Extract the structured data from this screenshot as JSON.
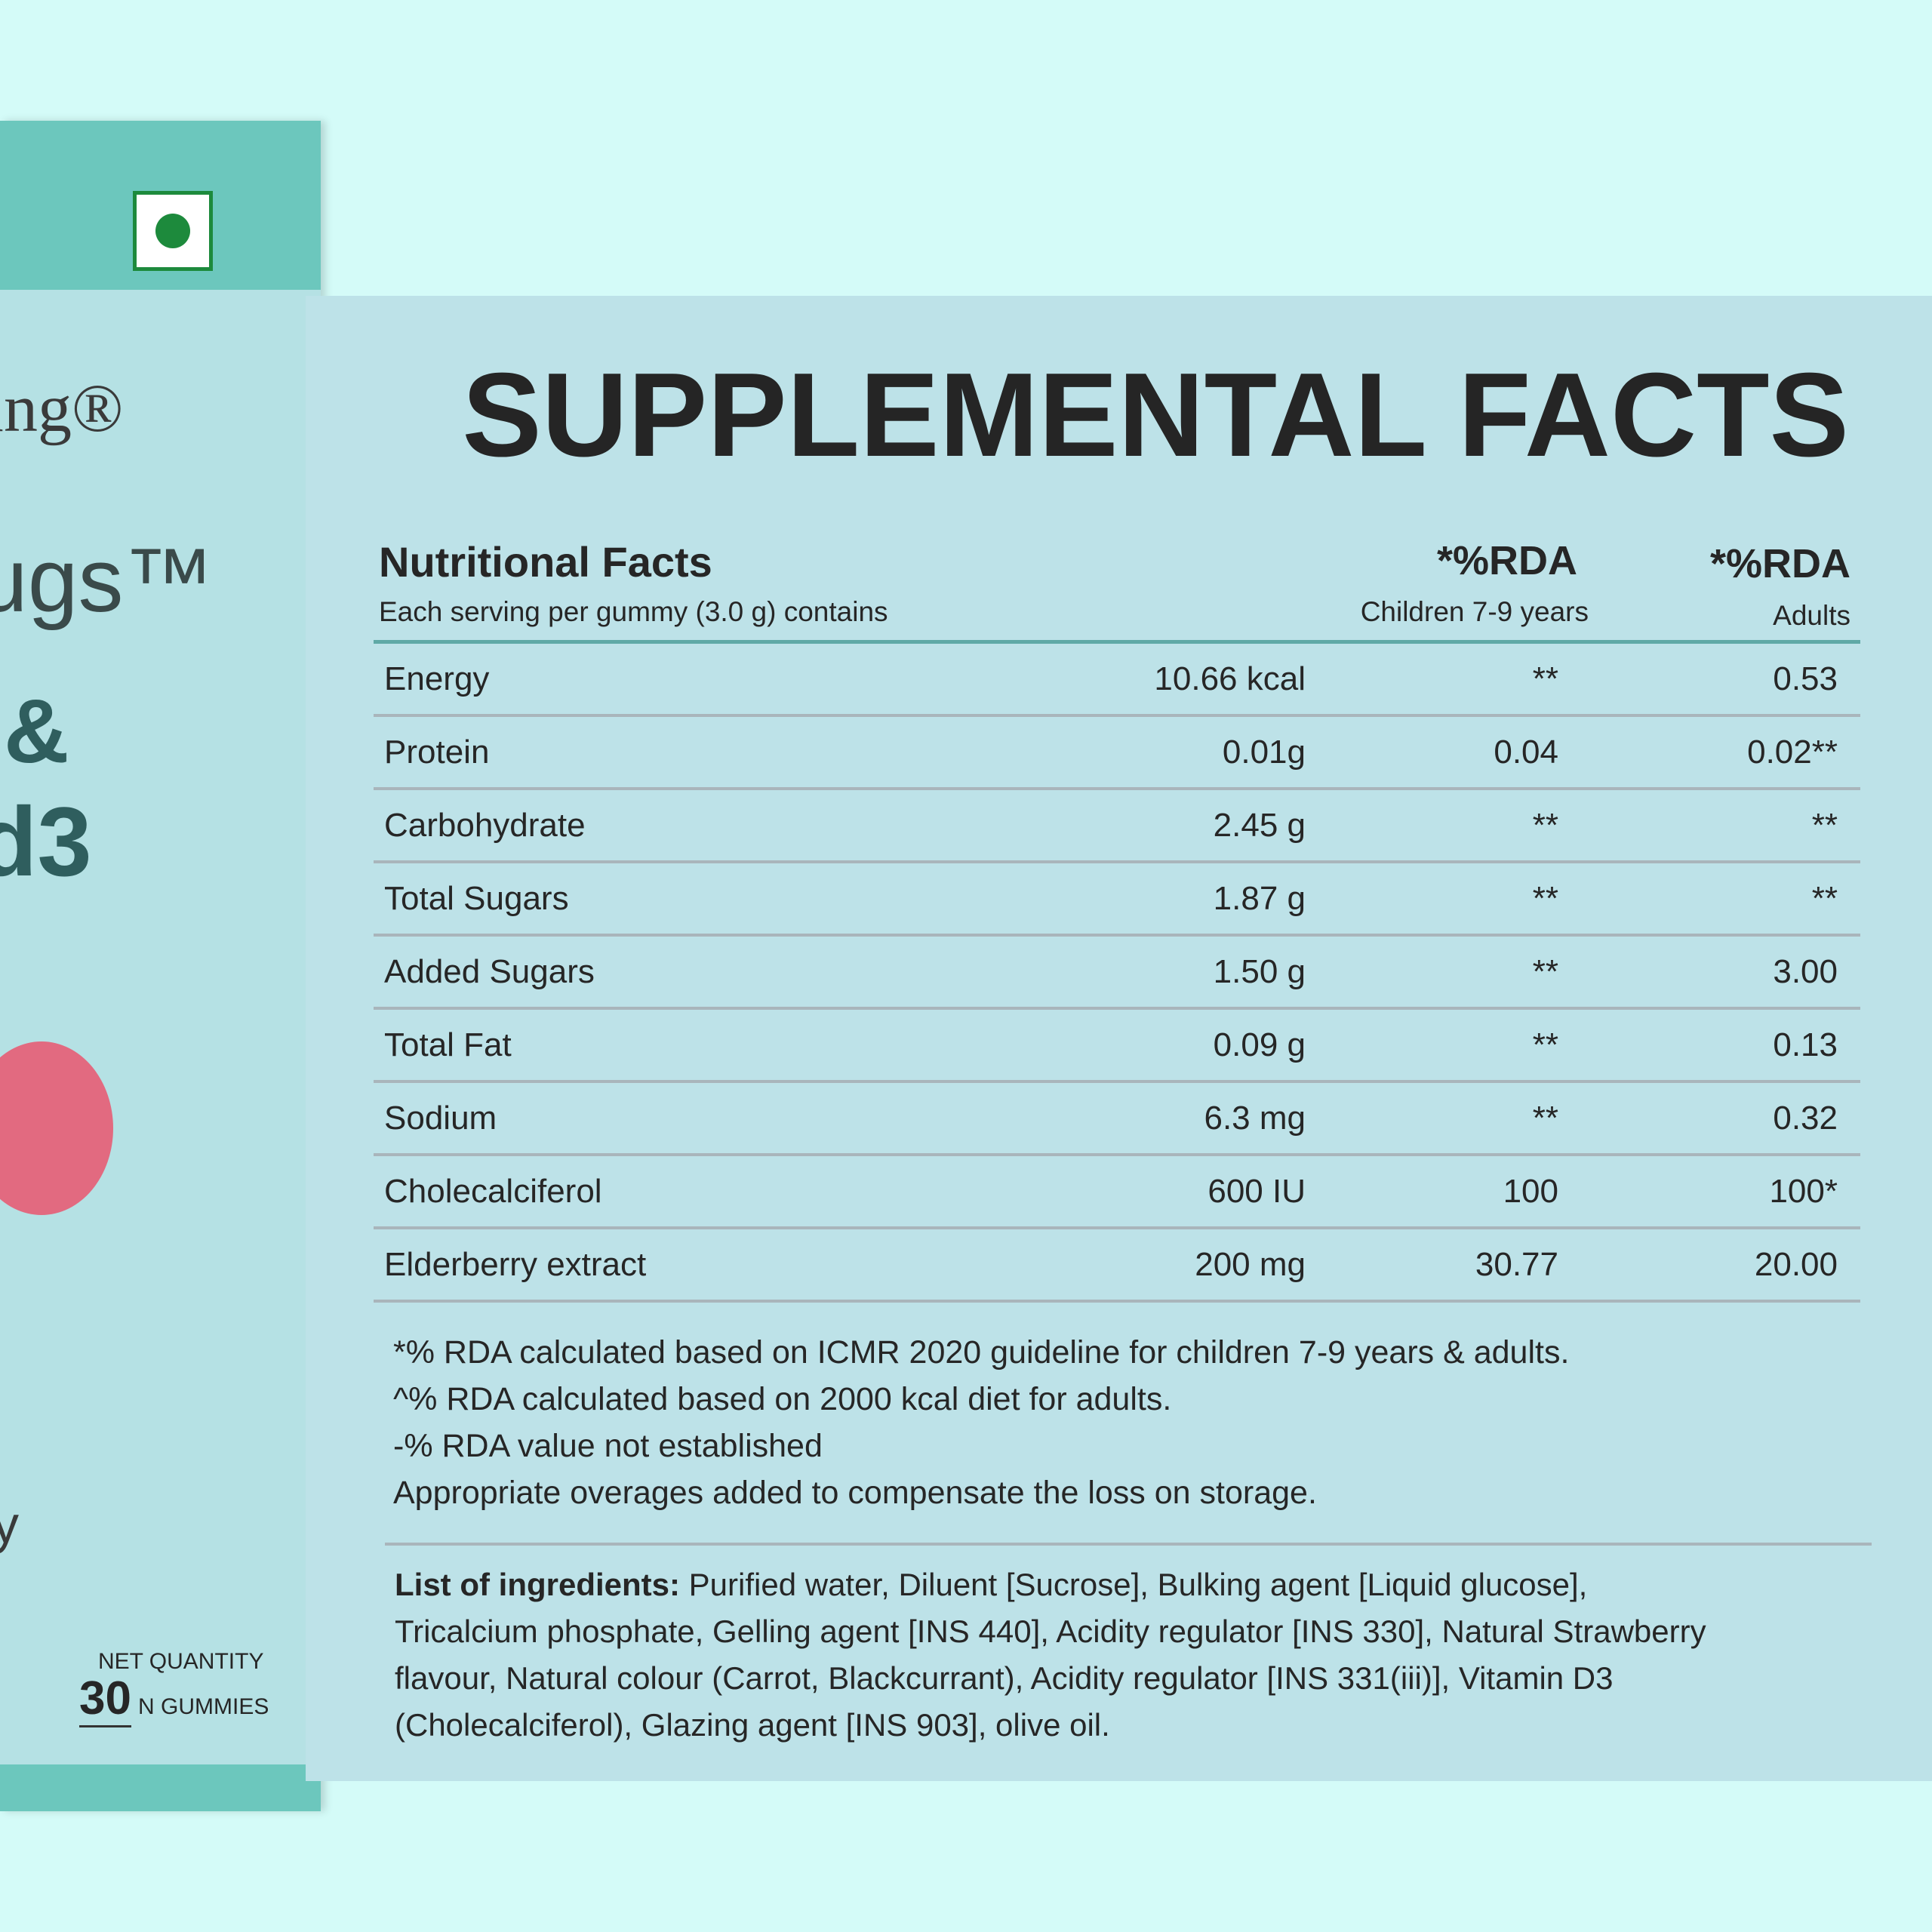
{
  "box": {
    "brand": "ing®",
    "product": "ugs™",
    "amp": "&",
    "vitamin": "d3",
    "tail": "y",
    "net_label": "NET QUANTITY",
    "net_number": "30",
    "net_unit": "N GUMMIES"
  },
  "title": "SUPPLEMENTAL FACTS",
  "table": {
    "heading": "Nutritional Facts",
    "subheading": "Each serving per gummy (3.0 g) contains",
    "columns": [
      {
        "title": "*%RDA",
        "subtitle": "Children 7-9 years"
      },
      {
        "title": "*%RDA",
        "subtitle": "Adults"
      }
    ],
    "rows": [
      [
        "Energy",
        "10.66 kcal",
        "**",
        "0.53"
      ],
      [
        "Protein",
        "0.01g",
        "0.04",
        "0.02**"
      ],
      [
        "Carbohydrate",
        "2.45 g",
        "**",
        "**"
      ],
      [
        "Total Sugars",
        "1.87 g",
        "**",
        "**"
      ],
      [
        "Added Sugars",
        "1.50 g",
        "**",
        "3.00"
      ],
      [
        "Total Fat",
        "0.09 g",
        "**",
        "0.13"
      ],
      [
        "Sodium",
        "6.3 mg",
        "**",
        "0.32"
      ],
      [
        "Cholecalciferol",
        "600 IU",
        "100",
        "100*"
      ],
      [
        "Elderberry extract",
        "200 mg",
        "30.77",
        "20.00"
      ]
    ]
  },
  "notes": [
    "*% RDA calculated based on ICMR 2020 guideline for children 7-9 years & adults.",
    "^% RDA calculated based on 2000 kcal diet for adults.",
    "-% RDA value not established",
    "Appropriate overages added to compensate the loss on storage."
  ],
  "ingredients": {
    "label": "List of ingredients:",
    "lines": [
      "Purified water, Diluent [Sucrose], Bulking agent [Liquid glucose],",
      "Tricalcium phosphate, Gelling agent [INS 440], Acidity regulator [INS 330], Natural Strawberry",
      "flavour, Natural colour (Carrot, Blackcurrant), Acidity regulator [INS 331(iii)], Vitamin D3",
      "(Cholecalciferol), Glazing agent [INS 903], olive oil."
    ]
  }
}
